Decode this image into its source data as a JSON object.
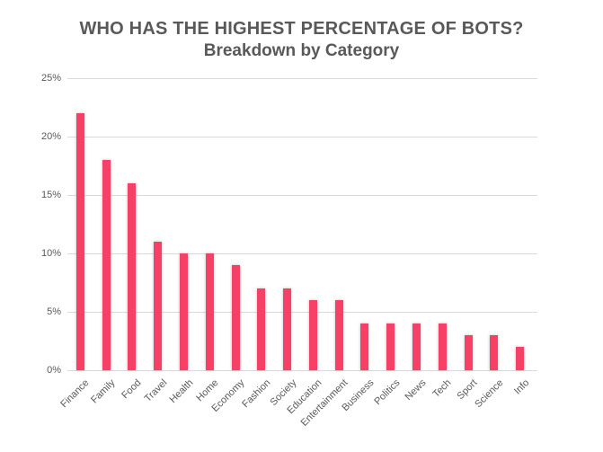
{
  "title": "WHO HAS THE HIGHEST PERCENTAGE OF BOTS?",
  "subtitle": "Breakdown by Category",
  "colors": {
    "bar": "#f74065",
    "gridline": "#d9d9d9",
    "text": "#595959",
    "background": "#ffffff"
  },
  "chart_data": {
    "type": "bar",
    "title": "WHO HAS THE HIGHEST PERCENTAGE OF BOTS?",
    "subtitle": "Breakdown by Category",
    "categories": [
      "Finance",
      "Family",
      "Food",
      "Travel",
      "Health",
      "Home",
      "Economy",
      "Fashion",
      "Society",
      "Education",
      "Entertainment",
      "Business",
      "Politics",
      "News",
      "Tech",
      "Sport",
      "Science",
      "Info"
    ],
    "values": [
      22,
      18,
      16,
      11,
      10,
      10,
      9,
      7,
      7,
      6,
      6,
      4,
      4,
      4,
      4,
      3,
      3,
      2
    ],
    "value_unit": "%",
    "xlabel": "",
    "ylabel": "",
    "ylim": [
      0,
      25
    ],
    "ytick_step": 5,
    "ytick_labels": [
      "0%",
      "5%",
      "10%",
      "15%",
      "20%",
      "25%"
    ],
    "grid": true,
    "legend_position": "none",
    "bar_color": "#f74065",
    "x_label_rotation_deg": 45
  }
}
